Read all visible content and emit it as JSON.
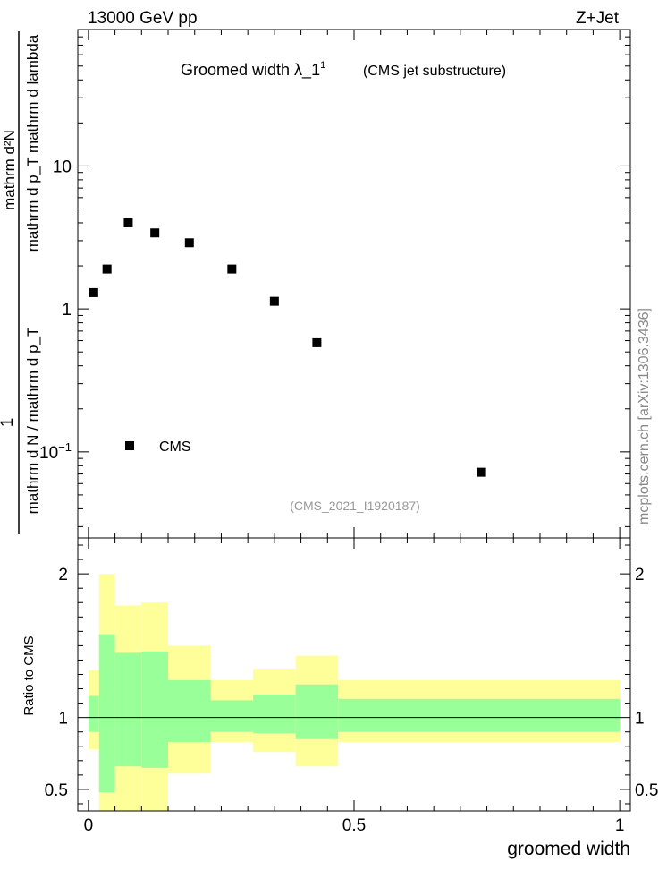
{
  "header": {
    "left": "13000 GeV pp",
    "right": "Z+Jet"
  },
  "watermark": "mcplots.cern.ch [arXiv:1306.3436]",
  "chart_data": [
    {
      "type": "scatter",
      "title": "Groomed width  λ_1",
      "title_superscript": "1",
      "title_suffix": "(CMS jet substructure)",
      "analysis_id": "(CMS_2021_I1920187)",
      "ylabel_numerator": "1",
      "ylabel_denominator": "mathrm d N / mathrm d p_T",
      "ylabel_numerator2": "mathrm d²N",
      "ylabel_denominator2": "mathrm d p_T mathrm d lambda",
      "yscale": "log",
      "xlim": [
        -0.02,
        1.02
      ],
      "ylim": [
        0.025,
        90
      ],
      "ytick_labels": [
        {
          "value": 10,
          "label": "10"
        },
        {
          "value": 1,
          "label": "1"
        },
        {
          "value": 0.1,
          "label": "10",
          "sup": "−1"
        }
      ],
      "legend": {
        "position": "lower-left",
        "entries": [
          "CMS"
        ]
      },
      "series": [
        {
          "name": "CMS",
          "marker": "square",
          "color": "#000000",
          "x": [
            0.01,
            0.035,
            0.075,
            0.125,
            0.19,
            0.27,
            0.35,
            0.43,
            0.74
          ],
          "y": [
            1.3,
            1.9,
            4.0,
            3.4,
            2.9,
            1.9,
            1.13,
            0.58,
            0.072
          ]
        }
      ]
    },
    {
      "type": "area",
      "ylabel": "Ratio to CMS",
      "xlabel": "groomed width",
      "xlim": [
        -0.02,
        1.02
      ],
      "ylim": [
        0.35,
        2.25
      ],
      "xtick_labels": [
        {
          "value": 0,
          "label": "0"
        },
        {
          "value": 0.5,
          "label": "0.5"
        },
        {
          "value": 1,
          "label": "1"
        }
      ],
      "ytick_labels": [
        {
          "value": 2,
          "label": "2"
        },
        {
          "value": 1,
          "label": "1"
        },
        {
          "value": 0.5,
          "label": "0.5"
        }
      ],
      "reference_line": 1,
      "colors": {
        "inner_band": "#99ff99",
        "outer_band": "#ffff99"
      },
      "bins": [
        {
          "x0": 0.0,
          "x1": 0.02,
          "inner": [
            0.9,
            1.15
          ],
          "outer": [
            0.78,
            1.33
          ]
        },
        {
          "x0": 0.02,
          "x1": 0.05,
          "inner": [
            0.48,
            1.58
          ],
          "outer": [
            0.35,
            2.0
          ]
        },
        {
          "x0": 0.05,
          "x1": 0.1,
          "inner": [
            0.66,
            1.45
          ],
          "outer": [
            0.35,
            1.78
          ]
        },
        {
          "x0": 0.1,
          "x1": 0.15,
          "inner": [
            0.65,
            1.46
          ],
          "outer": [
            0.35,
            1.8
          ]
        },
        {
          "x0": 0.15,
          "x1": 0.23,
          "inner": [
            0.83,
            1.26
          ],
          "outer": [
            0.61,
            1.5
          ]
        },
        {
          "x0": 0.23,
          "x1": 0.31,
          "inner": [
            0.9,
            1.12
          ],
          "outer": [
            0.83,
            1.26
          ]
        },
        {
          "x0": 0.31,
          "x1": 0.39,
          "inner": [
            0.89,
            1.16
          ],
          "outer": [
            0.76,
            1.34
          ]
        },
        {
          "x0": 0.39,
          "x1": 0.47,
          "inner": [
            0.85,
            1.23
          ],
          "outer": [
            0.66,
            1.43
          ]
        },
        {
          "x0": 0.47,
          "x1": 1.0,
          "inner": [
            0.9,
            1.13
          ],
          "outer": [
            0.83,
            1.26
          ]
        }
      ]
    }
  ]
}
